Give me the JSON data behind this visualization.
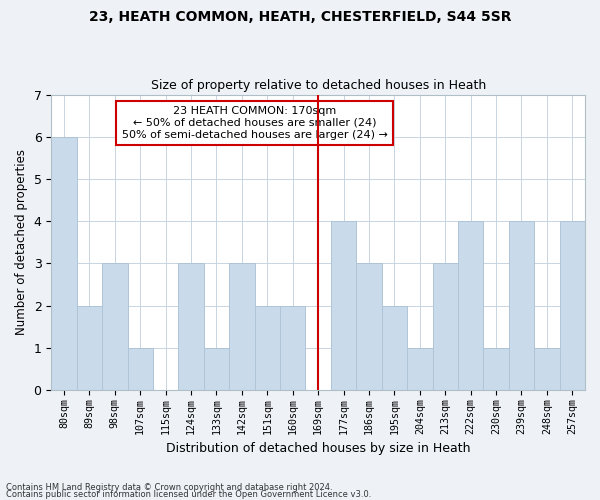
{
  "title": "23, HEATH COMMON, HEATH, CHESTERFIELD, S44 5SR",
  "subtitle": "Size of property relative to detached houses in Heath",
  "xlabel": "Distribution of detached houses by size in Heath",
  "ylabel": "Number of detached properties",
  "categories": [
    "80sqm",
    "89sqm",
    "98sqm",
    "107sqm",
    "115sqm",
    "124sqm",
    "133sqm",
    "142sqm",
    "151sqm",
    "160sqm",
    "169sqm",
    "177sqm",
    "186sqm",
    "195sqm",
    "204sqm",
    "213sqm",
    "222sqm",
    "230sqm",
    "239sqm",
    "248sqm",
    "257sqm"
  ],
  "values": [
    6,
    2,
    3,
    1,
    0,
    3,
    1,
    3,
    2,
    2,
    0,
    4,
    3,
    2,
    1,
    3,
    4,
    1,
    4,
    1,
    4
  ],
  "bar_color": "#c9daea",
  "bar_edgecolor": "#b0c4d8",
  "vline_index": 10,
  "vline_color": "#cc0000",
  "annotation_text": "23 HEATH COMMON: 170sqm\n← 50% of detached houses are smaller (24)\n50% of semi-detached houses are larger (24) →",
  "annotation_box_color": "#cc0000",
  "ylim": [
    0,
    7
  ],
  "yticks": [
    0,
    1,
    2,
    3,
    4,
    5,
    6,
    7
  ],
  "footer_line1": "Contains HM Land Registry data © Crown copyright and database right 2024.",
  "footer_line2": "Contains public sector information licensed under the Open Government Licence v3.0.",
  "background_color": "#eef2f7",
  "plot_background": "#ffffff"
}
